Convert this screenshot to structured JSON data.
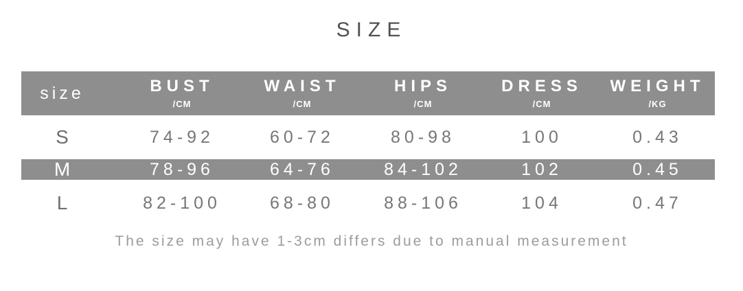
{
  "title": "SIZE",
  "table": {
    "size_header": "size",
    "columns": [
      {
        "label": "BUST",
        "unit": "/CM"
      },
      {
        "label": "WAIST",
        "unit": "/CM"
      },
      {
        "label": "HIPS",
        "unit": "/CM"
      },
      {
        "label": "DRESS",
        "unit": "/CM"
      },
      {
        "label": "WEIGHT",
        "unit": "/KG"
      }
    ],
    "rows": [
      {
        "size": "S",
        "highlighted": false,
        "values": [
          "74-92",
          "60-72",
          "80-98",
          "100",
          "0.43"
        ]
      },
      {
        "size": "M",
        "highlighted": true,
        "values": [
          "78-96",
          "64-76",
          "84-102",
          "102",
          "0.45"
        ]
      },
      {
        "size": "L",
        "highlighted": false,
        "values": [
          "82-100",
          "68-80",
          "88-106",
          "104",
          "0.47"
        ]
      }
    ]
  },
  "footnote": "The size may have 1-3cm differs due to manual measurement",
  "colors": {
    "band_gray": "#8e8e8e",
    "header_text": "#ffffff",
    "data_text": "#767676",
    "title_text": "#515151",
    "footnote_text": "#9c9c9c"
  }
}
